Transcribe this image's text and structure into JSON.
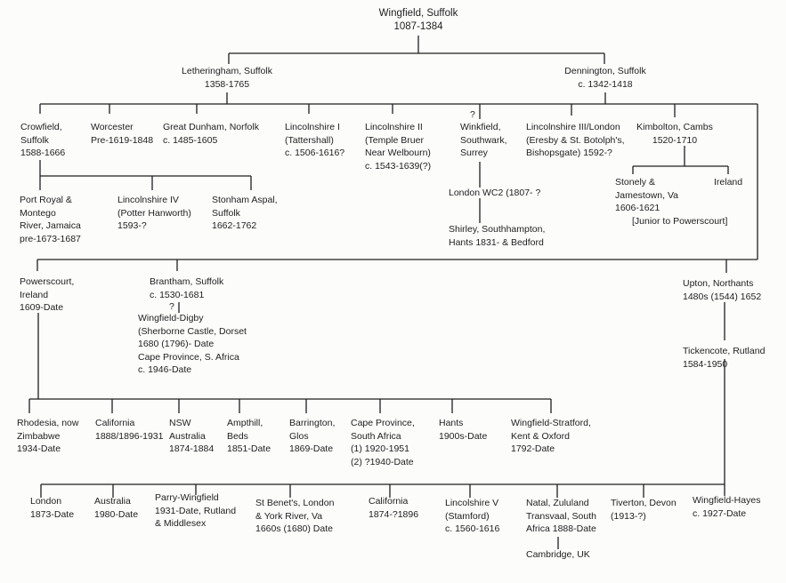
{
  "nodes": [
    {
      "id": "root",
      "lines": [
        "Wingfield, Suffolk",
        "1087-1384"
      ]
    },
    {
      "id": "letheringham",
      "lines": [
        "Letheringham, Suffolk",
        "1358-1765"
      ]
    },
    {
      "id": "dennington",
      "lines": [
        "Dennington, Suffolk",
        "c. 1342-1418"
      ]
    },
    {
      "id": "crowfield",
      "lines": [
        "Crowfield,",
        "Suffolk",
        "1588-1666"
      ]
    },
    {
      "id": "worcester",
      "lines": [
        "Worcester",
        "Pre-1619-1848"
      ]
    },
    {
      "id": "great-dunham",
      "lines": [
        "Great Dunham, Norfolk",
        "c. 1485-1605"
      ]
    },
    {
      "id": "lincolnshire-1",
      "lines": [
        "Lincolnshire I",
        "(Tattershall)",
        "c. 1506-1616?"
      ]
    },
    {
      "id": "lincolnshire-2",
      "lines": [
        "Lincolnshire II",
        "(Temple Bruer",
        "Near Welbourn)",
        "c. 1543-1639(?)"
      ]
    },
    {
      "id": "winkfield-query",
      "lines": [
        "?"
      ]
    },
    {
      "id": "winkfield",
      "lines": [
        "Winkfield,",
        "Southwark,",
        "Surrey"
      ]
    },
    {
      "id": "lincolnshire-3",
      "lines": [
        "Lincolnshire III/London",
        "(Eresby & St. Botolph's,",
        "Bishopsgate) 1592-?"
      ]
    },
    {
      "id": "kimbolton",
      "lines": [
        "Kimbolton, Cambs",
        "1520-1710"
      ]
    },
    {
      "id": "port-royal",
      "lines": [
        "Port Royal &",
        "Montego",
        "River, Jamaica",
        "pre-1673-1687"
      ]
    },
    {
      "id": "lincolnshire-4",
      "lines": [
        "Lincolnshire IV",
        "(Potter Hanworth)",
        "1593-?"
      ]
    },
    {
      "id": "stonham-aspal",
      "lines": [
        "Stonham Aspal,",
        "Suffolk",
        "1662-1762"
      ]
    },
    {
      "id": "london-wc2",
      "lines": [
        "London WC2 (1807- ?"
      ]
    },
    {
      "id": "shirley",
      "lines": [
        "Shirley, Southhampton,",
        "Hants 1831- & Bedford"
      ]
    },
    {
      "id": "stonely",
      "lines": [
        "Stonely &",
        "Jamestown, Va",
        "1606-1621"
      ]
    },
    {
      "id": "ireland",
      "lines": [
        "Ireland"
      ]
    },
    {
      "id": "junior-note",
      "lines": [
        "[Junior to Powerscourt]"
      ]
    },
    {
      "id": "powerscourt",
      "lines": [
        "Powerscourt,",
        "Ireland",
        "1609-Date"
      ]
    },
    {
      "id": "brantham",
      "lines": [
        "Brantham, Suffolk",
        "c. 1530-1681"
      ]
    },
    {
      "id": "brantham-query",
      "lines": [
        "?"
      ]
    },
    {
      "id": "wingfield-digby",
      "lines": [
        "Wingfield-Digby",
        "(Sherborne Castle, Dorset",
        "1680 (1796)- Date",
        "Cape Province, S. Africa",
        "c. 1946-Date"
      ]
    },
    {
      "id": "upton",
      "lines": [
        "Upton, Northants",
        "1480s (1544) 1652"
      ]
    },
    {
      "id": "tickencote",
      "lines": [
        "Tickencote, Rutland",
        "1584-1950"
      ]
    },
    {
      "id": "rhodesia",
      "lines": [
        "Rhodesia, now",
        "Zimbabwe",
        "1934-Date"
      ]
    },
    {
      "id": "california-1",
      "lines": [
        "California",
        "1888/1896-1931"
      ]
    },
    {
      "id": "nsw",
      "lines": [
        "NSW",
        "Australia",
        "1874-1884"
      ]
    },
    {
      "id": "ampthill",
      "lines": [
        "Ampthill,",
        "Beds",
        "1851-Date"
      ]
    },
    {
      "id": "barrington",
      "lines": [
        "Barrington,",
        "Glos",
        "1869-Date"
      ]
    },
    {
      "id": "cape-province",
      "lines": [
        "Cape Province,",
        "South Africa",
        "(1) 1920-1951",
        "(2) ?1940-Date"
      ]
    },
    {
      "id": "hants",
      "lines": [
        "Hants",
        "1900s-Date"
      ]
    },
    {
      "id": "wingfield-stratford",
      "lines": [
        "Wingfield-Stratford,",
        "Kent & Oxford",
        "1792-Date"
      ]
    },
    {
      "id": "london",
      "lines": [
        "London",
        "1873-Date"
      ]
    },
    {
      "id": "australia",
      "lines": [
        "Australia",
        "1980-Date"
      ]
    },
    {
      "id": "parry-wingfield",
      "lines": [
        "Parry-Wingfield",
        "1931-Date, Rutland",
        "& Middlesex"
      ]
    },
    {
      "id": "st-benets",
      "lines": [
        "St Benet's, London",
        "& York River, Va",
        "1660s (1680) Date"
      ]
    },
    {
      "id": "california-2",
      "lines": [
        "California",
        "1874-?1896"
      ]
    },
    {
      "id": "lincolnshire-5",
      "lines": [
        "Lincolshire V",
        "(Stamford)",
        "c. 1560-1616"
      ]
    },
    {
      "id": "natal",
      "lines": [
        "Natal, Zululand",
        "Transvaal, South",
        "Africa 1888-Date"
      ]
    },
    {
      "id": "tiverton",
      "lines": [
        "Tiverton, Devon",
        "(1913-?)"
      ]
    },
    {
      "id": "wingfield-hayes",
      "lines": [
        "Wingfield-Hayes",
        "c. 1927-Date"
      ]
    },
    {
      "id": "cambridge",
      "lines": [
        "Cambridge, UK"
      ]
    }
  ]
}
